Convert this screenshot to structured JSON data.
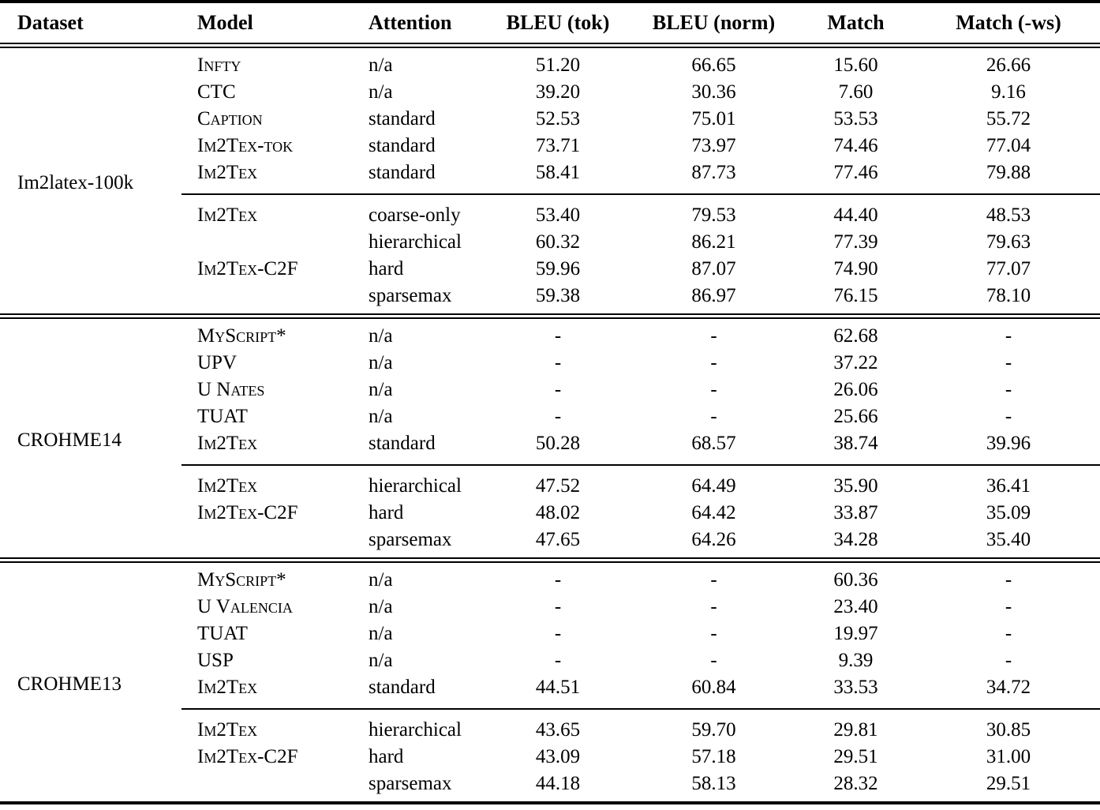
{
  "page": {
    "background_color": "#ffffff",
    "text_color": "#000000"
  },
  "table": {
    "columns": [
      {
        "id": "dataset",
        "label": "Dataset",
        "align": "left"
      },
      {
        "id": "model",
        "label": "Model",
        "align": "left"
      },
      {
        "id": "attention",
        "label": "Attention",
        "align": "left"
      },
      {
        "id": "bleu_tok",
        "label": "BLEU (tok)",
        "align": "center"
      },
      {
        "id": "bleu_norm",
        "label": "BLEU (norm)",
        "align": "center"
      },
      {
        "id": "match",
        "label": "Match",
        "align": "center"
      },
      {
        "id": "match_ws",
        "label": "Match (-ws)",
        "align": "center"
      }
    ],
    "sections": [
      {
        "dataset": "Im2latex-100k",
        "groups": [
          {
            "rows": [
              {
                "model": "Infty",
                "attention": "n/a",
                "bleu_tok": "51.20",
                "bleu_norm": "66.65",
                "match": "15.60",
                "match_ws": "26.66"
              },
              {
                "model": "CTC",
                "attention": "n/a",
                "bleu_tok": "39.20",
                "bleu_norm": "30.36",
                "match": "7.60",
                "match_ws": "9.16"
              },
              {
                "model": "Caption",
                "attention": "standard",
                "bleu_tok": "52.53",
                "bleu_norm": "75.01",
                "match": "53.53",
                "match_ws": "55.72"
              },
              {
                "model": "Im2Tex-tok",
                "attention": "standard",
                "bleu_tok": "73.71",
                "bleu_norm": "73.97",
                "match": "74.46",
                "match_ws": "77.04"
              },
              {
                "model": "Im2Tex",
                "attention": "standard",
                "bleu_tok": "58.41",
                "bleu_norm": "87.73",
                "match": "77.46",
                "match_ws": "79.88"
              }
            ]
          },
          {
            "rows": [
              {
                "model": "Im2Tex",
                "attention": "coarse-only",
                "bleu_tok": "53.40",
                "bleu_norm": "79.53",
                "match": "44.40",
                "match_ws": "48.53"
              },
              {
                "model": "",
                "attention": "hierarchical",
                "bleu_tok": "60.32",
                "bleu_norm": "86.21",
                "match": "77.39",
                "match_ws": "79.63"
              },
              {
                "model": "Im2Tex-C2F",
                "attention": "hard",
                "bleu_tok": "59.96",
                "bleu_norm": "87.07",
                "match": "74.90",
                "match_ws": "77.07"
              },
              {
                "model": "",
                "attention": "sparsemax",
                "bleu_tok": "59.38",
                "bleu_norm": "86.97",
                "match": "76.15",
                "match_ws": "78.10"
              }
            ]
          }
        ]
      },
      {
        "dataset": "CROHME14",
        "groups": [
          {
            "rows": [
              {
                "model": "MyScript*",
                "attention": "n/a",
                "bleu_tok": "-",
                "bleu_norm": "-",
                "match": "62.68",
                "match_ws": "-"
              },
              {
                "model": "UPV",
                "attention": "n/a",
                "bleu_tok": "-",
                "bleu_norm": "-",
                "match": "37.22",
                "match_ws": "-"
              },
              {
                "model": "U Nates",
                "attention": "n/a",
                "bleu_tok": "-",
                "bleu_norm": "-",
                "match": "26.06",
                "match_ws": "-"
              },
              {
                "model": "TUAT",
                "attention": "n/a",
                "bleu_tok": "-",
                "bleu_norm": "-",
                "match": "25.66",
                "match_ws": "-"
              },
              {
                "model": "Im2Tex",
                "attention": "standard",
                "bleu_tok": "50.28",
                "bleu_norm": "68.57",
                "match": "38.74",
                "match_ws": "39.96"
              }
            ]
          },
          {
            "rows": [
              {
                "model": "Im2Tex",
                "attention": "hierarchical",
                "bleu_tok": "47.52",
                "bleu_norm": "64.49",
                "match": "35.90",
                "match_ws": "36.41"
              },
              {
                "model": "Im2Tex-C2F",
                "attention": "hard",
                "bleu_tok": "48.02",
                "bleu_norm": "64.42",
                "match": "33.87",
                "match_ws": "35.09"
              },
              {
                "model": "",
                "attention": "sparsemax",
                "bleu_tok": "47.65",
                "bleu_norm": "64.26",
                "match": "34.28",
                "match_ws": "35.40"
              }
            ]
          }
        ]
      },
      {
        "dataset": "CROHME13",
        "groups": [
          {
            "rows": [
              {
                "model": "MyScript*",
                "attention": "n/a",
                "bleu_tok": "-",
                "bleu_norm": "-",
                "match": "60.36",
                "match_ws": "-"
              },
              {
                "model": "U Valencia",
                "attention": "n/a",
                "bleu_tok": "-",
                "bleu_norm": "-",
                "match": "23.40",
                "match_ws": "-"
              },
              {
                "model": "TUAT",
                "attention": "n/a",
                "bleu_tok": "-",
                "bleu_norm": "-",
                "match": "19.97",
                "match_ws": "-"
              },
              {
                "model": "USP",
                "attention": "n/a",
                "bleu_tok": "-",
                "bleu_norm": "-",
                "match": "9.39",
                "match_ws": "-"
              },
              {
                "model": "Im2Tex",
                "attention": "standard",
                "bleu_tok": "44.51",
                "bleu_norm": "60.84",
                "match": "33.53",
                "match_ws": "34.72"
              }
            ]
          },
          {
            "rows": [
              {
                "model": "Im2Tex",
                "attention": "hierarchical",
                "bleu_tok": "43.65",
                "bleu_norm": "59.70",
                "match": "29.81",
                "match_ws": "30.85"
              },
              {
                "model": "Im2Tex-C2F",
                "attention": "hard",
                "bleu_tok": "43.09",
                "bleu_norm": "57.18",
                "match": "29.51",
                "match_ws": "31.00"
              },
              {
                "model": "",
                "attention": "sparsemax",
                "bleu_tok": "44.18",
                "bleu_norm": "58.13",
                "match": "28.32",
                "match_ws": "29.51"
              }
            ]
          }
        ]
      }
    ]
  }
}
